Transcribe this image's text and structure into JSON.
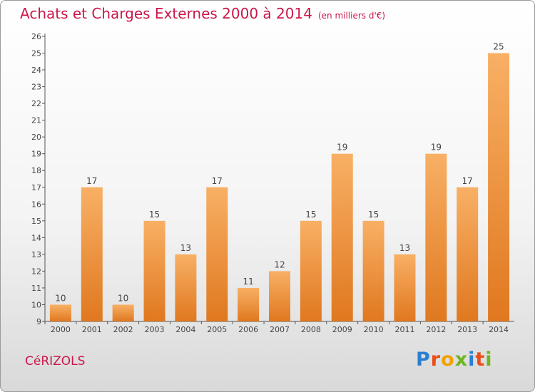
{
  "title": "Achats et Charges Externes 2000 à 2014",
  "subtitle": "(en milliers d'€)",
  "town": "CéRIZOLS",
  "logo": {
    "text": "Proxiti",
    "letter_colors": [
      "#2a7fd0",
      "#e94e1b",
      "#f2a100",
      "#6fb51f",
      "#2a7fd0",
      "#e94e1b",
      "#6fb51f"
    ]
  },
  "colors": {
    "title": "#c9184a",
    "bar_light": "#f8b065",
    "bar_dark": "#e0781f",
    "axis": "#555555",
    "label": "#444444"
  },
  "chart_data": {
    "type": "bar",
    "categories": [
      "2000",
      "2001",
      "2002",
      "2003",
      "2004",
      "2005",
      "2006",
      "2007",
      "2008",
      "2009",
      "2010",
      "2011",
      "2012",
      "2013",
      "2014"
    ],
    "values": [
      10,
      17,
      10,
      15,
      13,
      17,
      11,
      12,
      15,
      19,
      15,
      13,
      19,
      17,
      25
    ],
    "ylim": [
      9,
      26
    ],
    "yticks": [
      9,
      10,
      11,
      12,
      13,
      14,
      15,
      16,
      17,
      18,
      19,
      20,
      21,
      22,
      23,
      24,
      25,
      26
    ],
    "grid": false,
    "legend": "none"
  }
}
